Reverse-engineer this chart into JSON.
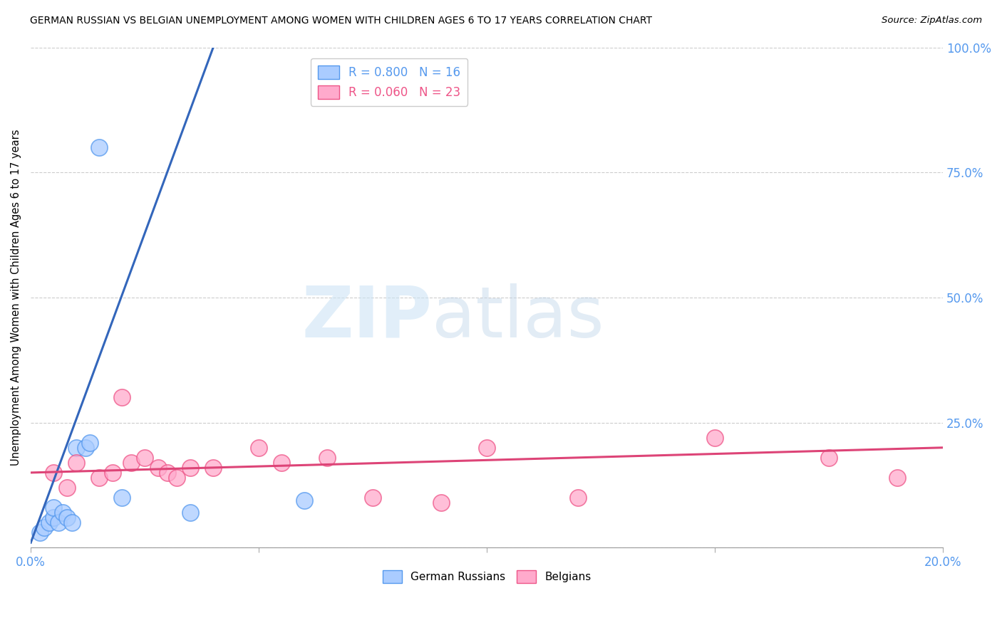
{
  "title": "GERMAN RUSSIAN VS BELGIAN UNEMPLOYMENT AMONG WOMEN WITH CHILDREN AGES 6 TO 17 YEARS CORRELATION CHART",
  "source": "Source: ZipAtlas.com",
  "ylabel": "Unemployment Among Women with Children Ages 6 to 17 years",
  "watermark_zip": "ZIP",
  "watermark_atlas": "atlas",
  "xmin": 0.0,
  "xmax": 0.2,
  "ymin": 0.0,
  "ymax": 1.0,
  "xtick_positions": [
    0.0,
    0.05,
    0.1,
    0.15,
    0.2
  ],
  "xtick_labels_show": [
    "0.0%",
    "",
    "",
    "",
    "20.0%"
  ],
  "yticks_right": [
    0.25,
    0.5,
    0.75,
    1.0
  ],
  "ytick_labels_right": [
    "25.0%",
    "50.0%",
    "75.0%",
    "100.0%"
  ],
  "grid_color": "#cccccc",
  "blue_color": "#5599ee",
  "pink_color": "#ee5588",
  "blue_scatter_face": "#aaccff",
  "blue_scatter_edge": "#5599ee",
  "pink_scatter_face": "#ffaacc",
  "pink_scatter_edge": "#ee5588",
  "blue_line_color": "#3366bb",
  "pink_line_color": "#dd4477",
  "axis_label_color": "#5599ee",
  "german_russian_x": [
    0.002,
    0.003,
    0.004,
    0.005,
    0.005,
    0.006,
    0.007,
    0.008,
    0.009,
    0.01,
    0.012,
    0.013,
    0.015,
    0.02,
    0.035,
    0.06
  ],
  "german_russian_y": [
    0.03,
    0.04,
    0.05,
    0.06,
    0.08,
    0.05,
    0.07,
    0.06,
    0.05,
    0.2,
    0.2,
    0.21,
    0.8,
    0.1,
    0.07,
    0.095
  ],
  "belgian_x": [
    0.005,
    0.008,
    0.01,
    0.015,
    0.018,
    0.02,
    0.022,
    0.025,
    0.028,
    0.03,
    0.032,
    0.035,
    0.04,
    0.05,
    0.055,
    0.065,
    0.075,
    0.09,
    0.1,
    0.12,
    0.15,
    0.175,
    0.19
  ],
  "belgian_y": [
    0.15,
    0.12,
    0.17,
    0.14,
    0.15,
    0.3,
    0.17,
    0.18,
    0.16,
    0.15,
    0.14,
    0.16,
    0.16,
    0.2,
    0.17,
    0.18,
    0.1,
    0.09,
    0.2,
    0.1,
    0.22,
    0.18,
    0.14
  ],
  "blue_line_x": [
    0.0,
    0.04
  ],
  "blue_line_y": [
    0.01,
    1.0
  ],
  "pink_line_x": [
    0.0,
    0.2
  ],
  "pink_line_y": [
    0.15,
    0.2
  ],
  "legend_R_blue": "R = 0.800",
  "legend_N_blue": "N = 16",
  "legend_R_pink": "R = 0.060",
  "legend_N_pink": "N = 23",
  "legend_label_blue": "German Russians",
  "legend_label_pink": "Belgians"
}
